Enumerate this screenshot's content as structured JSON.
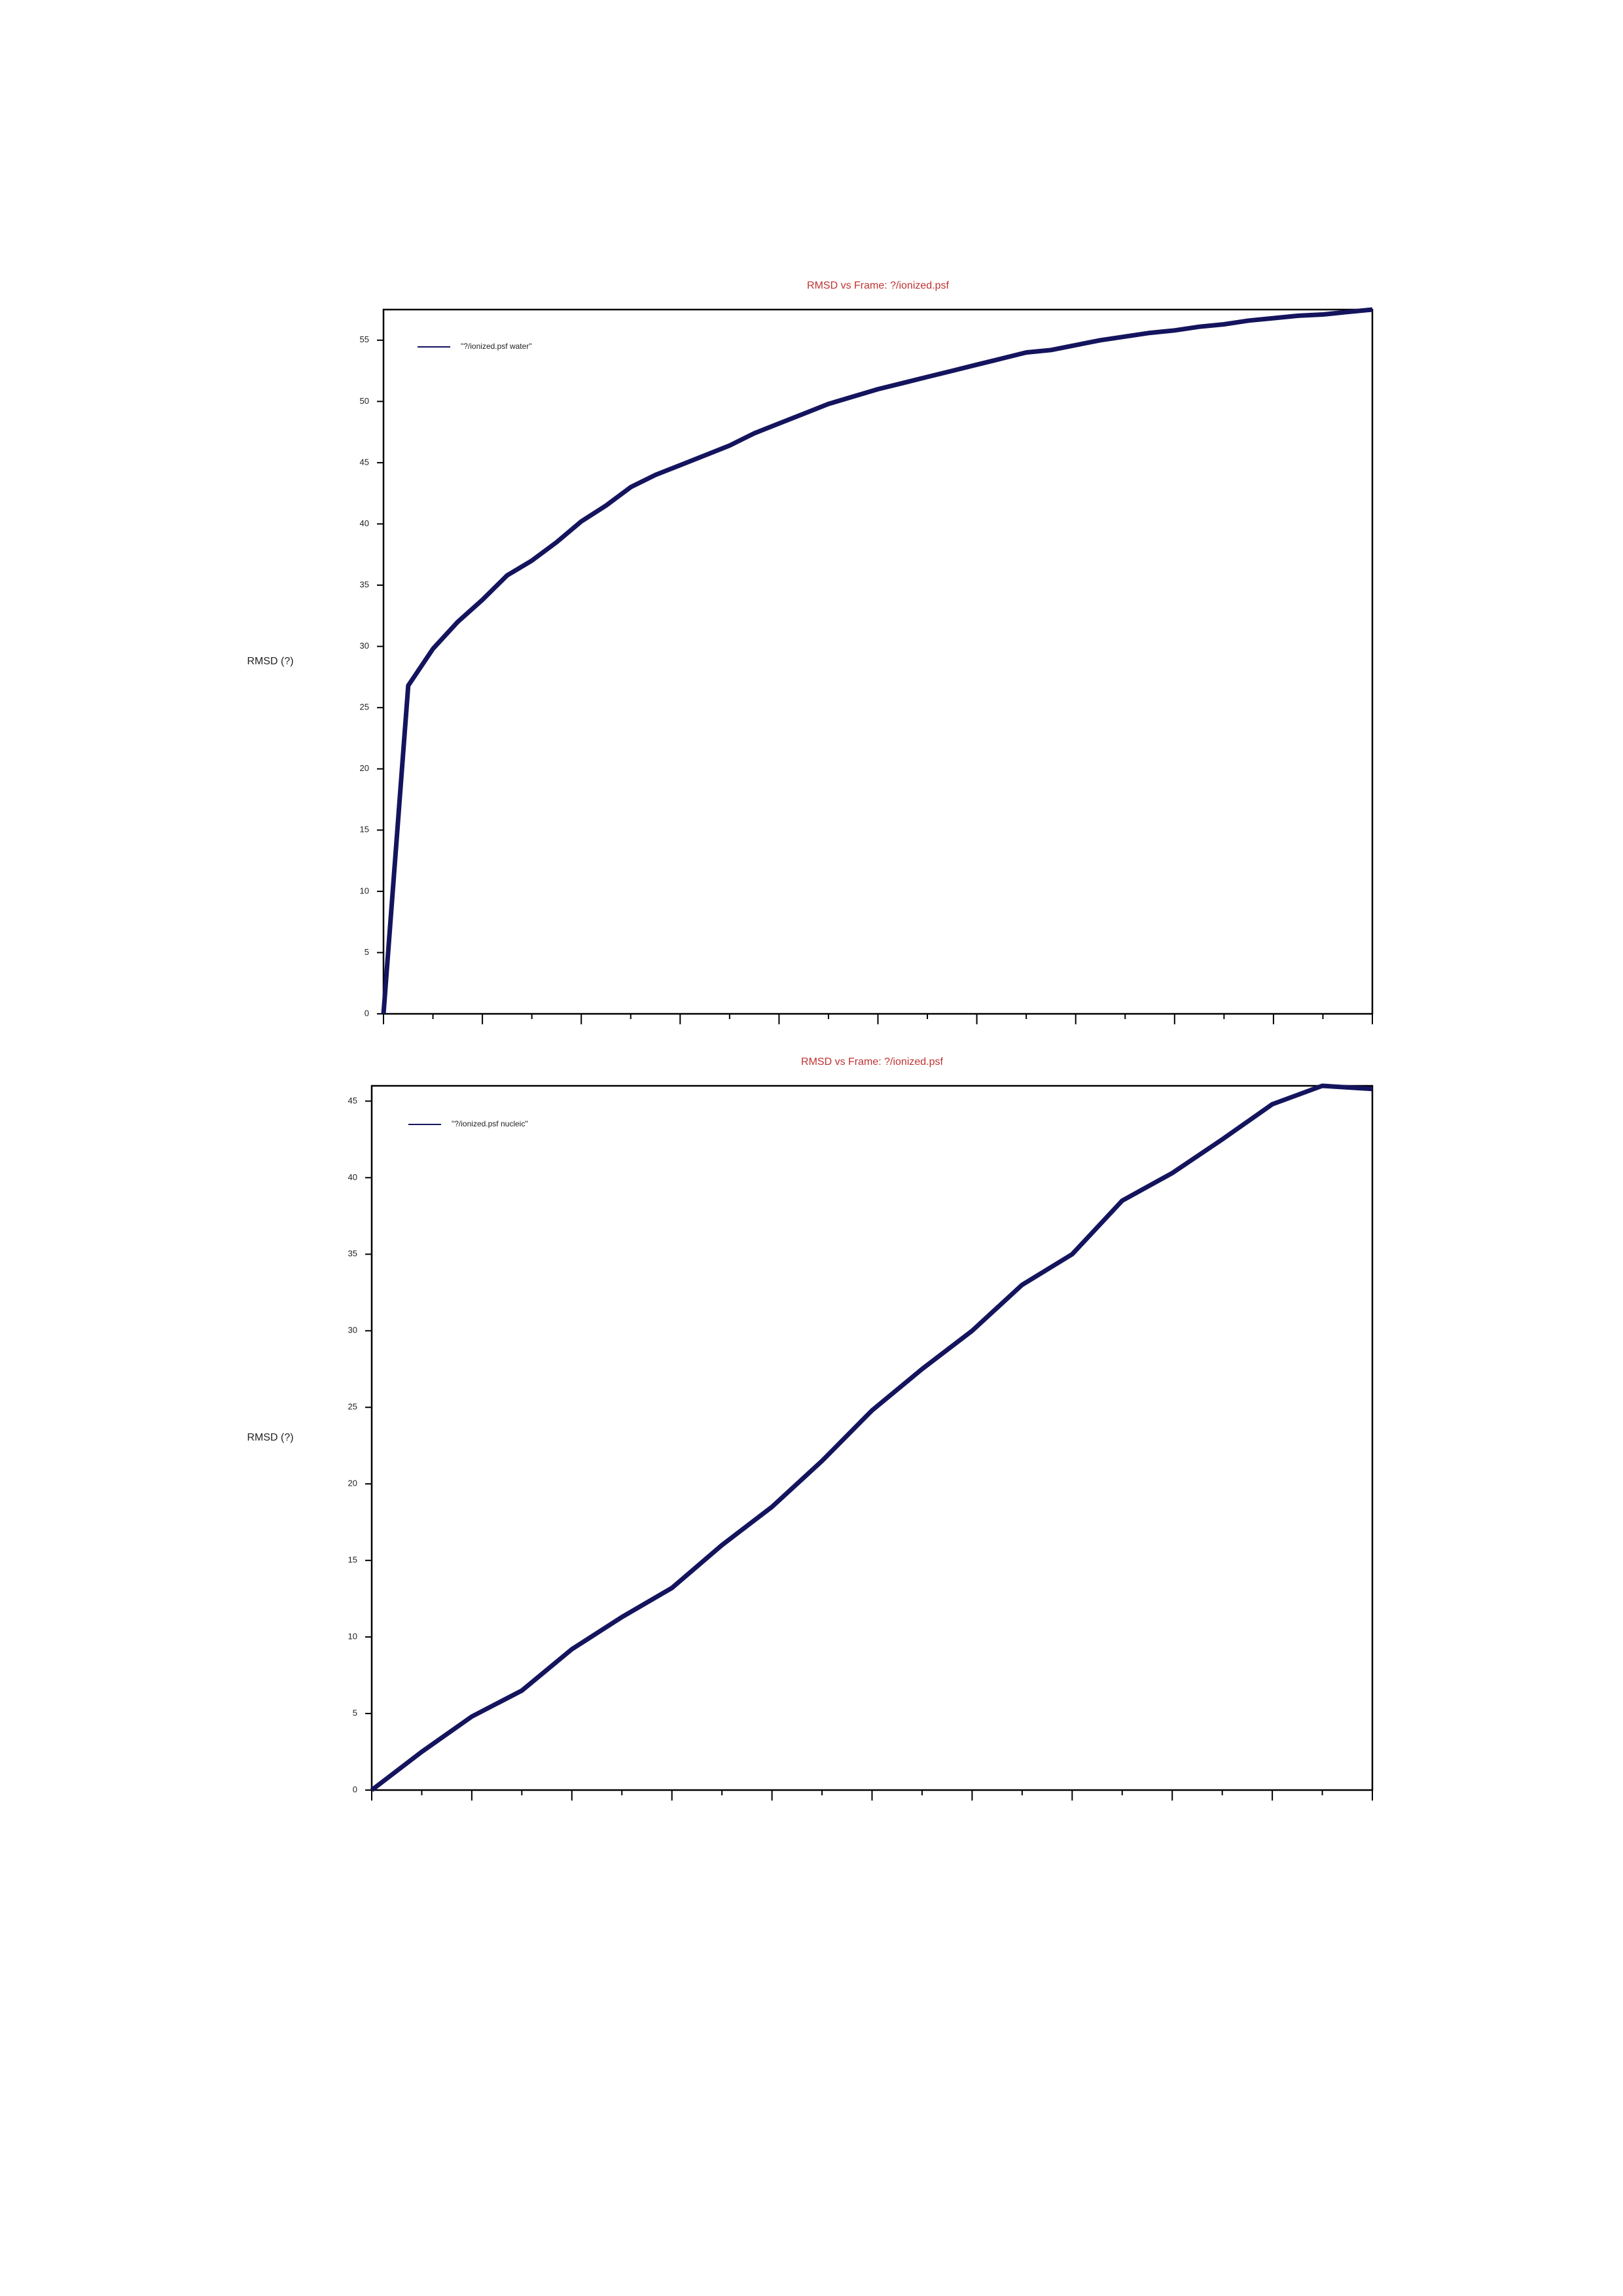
{
  "chart_data": [
    {
      "type": "line",
      "title": "RMSD vs Frame: ?/ionized.psf",
      "y_label": "RMSD (?)",
      "series": [
        {
          "name": "\"?/ionized.psf water\"",
          "color": "#14145e",
          "values": [
            0,
            26.8,
            29.8,
            32,
            33.8,
            35.8,
            37,
            38.5,
            40.2,
            41.5,
            43,
            44,
            44.8,
            45.6,
            46.4,
            47.4,
            48.2,
            49,
            49.8,
            50.4,
            51,
            51.5,
            52,
            52.5,
            53,
            53.5,
            54,
            54.2,
            54.6,
            55,
            55.3,
            55.6,
            55.8,
            56.1,
            56.3,
            56.6,
            56.8,
            57,
            57.1,
            57.3,
            57.5
          ]
        }
      ],
      "ylim": [
        0,
        57.5
      ],
      "yticks": [
        0,
        5,
        10,
        15,
        20,
        25,
        30,
        35,
        40,
        45,
        50,
        55
      ],
      "legend": "upper left"
    },
    {
      "type": "line",
      "title": "RMSD vs Frame: ?/ionized.psf",
      "y_label": "RMSD (?)",
      "series": [
        {
          "name": "\"?/ionized.psf nucleic\"",
          "color": "#14145e",
          "values": [
            0,
            2.5,
            4.8,
            6.5,
            9.2,
            11.3,
            13.2,
            16,
            18.5,
            21.5,
            24.8,
            27.5,
            30,
            33,
            35,
            38.5,
            40.3,
            42.5,
            44.8,
            46,
            45.8
          ]
        }
      ],
      "ylim": [
        0,
        46
      ],
      "yticks": [
        0,
        5,
        10,
        15,
        20,
        25,
        30,
        35,
        40,
        45
      ],
      "legend": "upper left"
    }
  ]
}
